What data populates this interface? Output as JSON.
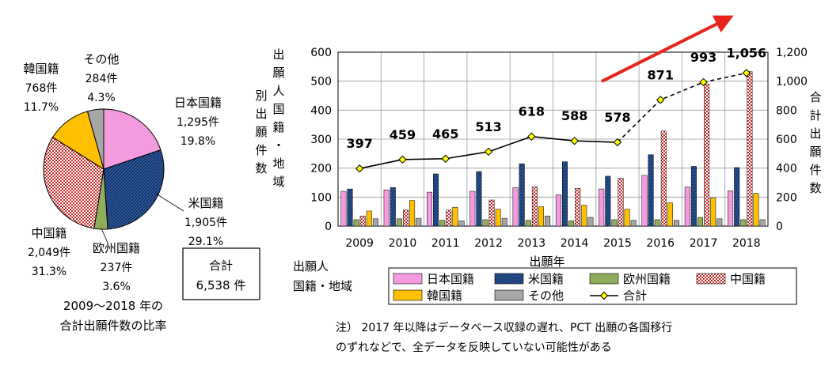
{
  "colors": {
    "japan": "#F49BE0",
    "us": "#2E5C9E",
    "europe": "#8FAE5C",
    "china": "#C62828",
    "korea": "#FFC000",
    "other": "#A6A6A6",
    "total_line": "#000000",
    "total_marker": "#FFFF00",
    "arrow": "#E8231B"
  },
  "pie": {
    "caption": [
      "2009～2018 年の",
      "合計出願件数の比率"
    ],
    "total_box": [
      "合計",
      "6,538 件"
    ]
  },
  "note": [
    "注） 2017 年以降はデータベース収録の遅れ、PCT 出願の各国移行",
    "のずれなどで、全データを反映していない可能性がある"
  ],
  "legend_title": [
    "出願人",
    "国籍・地域"
  ],
  "chart_data": [
    {
      "type": "pie",
      "slices": [
        {
          "key": "japan",
          "label": "日本国籍",
          "count": "1,295件",
          "pct": "19.8%",
          "value": 1295
        },
        {
          "key": "us",
          "label": "米国籍",
          "count": "1,905件",
          "pct": "29.1%",
          "value": 1905
        },
        {
          "key": "europe",
          "label": "欧州国籍",
          "count": "237件",
          "pct": "3.6%",
          "value": 237
        },
        {
          "key": "china",
          "label": "中国籍",
          "count": "2,049件",
          "pct": "31.3%",
          "value": 2049
        },
        {
          "key": "korea",
          "label": "韓国籍",
          "count": "768件",
          "pct": "11.7%",
          "value": 768
        },
        {
          "key": "other",
          "label": "その他",
          "count": "284件",
          "pct": "4.3%",
          "value": 284
        }
      ]
    },
    {
      "type": "bar",
      "categories": [
        "2009",
        "2010",
        "2011",
        "2012",
        "2013",
        "2014",
        "2015",
        "2016",
        "2017",
        "2018"
      ],
      "xlabel": "出願年",
      "ylabel": "出願人国籍・地域別出願件数",
      "y2label": "合計出願件数",
      "ylim": [
        0,
        600
      ],
      "y2lim": [
        0,
        1200
      ],
      "yticks": [
        "0",
        "100",
        "200",
        "300",
        "400",
        "500",
        "600"
      ],
      "y2ticks": [
        "0",
        "200",
        "400",
        "600",
        "800",
        "1,000",
        "1,200"
      ],
      "series": [
        {
          "key": "japan",
          "name": "日本国籍",
          "values": [
            120,
            125,
            117,
            120,
            133,
            108,
            128,
            175,
            135,
            122
          ]
        },
        {
          "key": "us",
          "name": "米国籍",
          "values": [
            128,
            133,
            180,
            188,
            215,
            222,
            172,
            246,
            206,
            202
          ]
        },
        {
          "key": "europe",
          "name": "欧州国籍",
          "values": [
            22,
            25,
            20,
            22,
            20,
            18,
            22,
            22,
            30,
            22
          ]
        },
        {
          "key": "china",
          "name": "中国籍",
          "values": [
            35,
            55,
            55,
            90,
            135,
            130,
            165,
            328,
            490,
            533
          ]
        },
        {
          "key": "korea",
          "name": "韓国籍",
          "values": [
            52,
            88,
            65,
            58,
            67,
            72,
            58,
            80,
            97,
            113
          ]
        },
        {
          "key": "other",
          "name": "その他",
          "values": [
            25,
            27,
            18,
            27,
            35,
            30,
            20,
            20,
            25,
            22
          ]
        }
      ],
      "total": {
        "key": "total",
        "name": "合計",
        "values": [
          397,
          459,
          465,
          513,
          618,
          588,
          578,
          871,
          993,
          1056
        ],
        "labels": [
          "397",
          "459",
          "465",
          "513",
          "618",
          "588",
          "578",
          "871",
          "993",
          "1,056"
        ]
      }
    }
  ]
}
